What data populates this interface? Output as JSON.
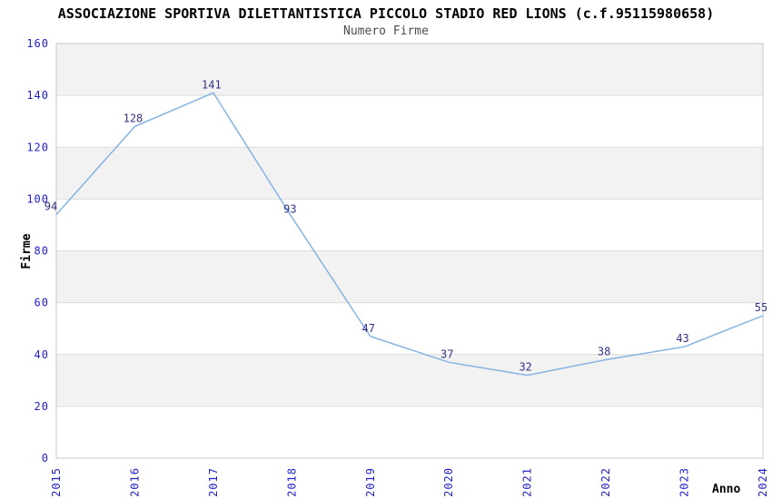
{
  "chart_data": {
    "type": "line",
    "title": "ASSOCIAZIONE SPORTIVA DILETTANTISTICA PICCOLO STADIO RED LIONS (c.f.95115980658)",
    "subtitle": "Numero Firme",
    "xlabel": "Anno",
    "ylabel": "Firme",
    "categories": [
      "2015",
      "2016",
      "2017",
      "2018",
      "2019",
      "2020",
      "2021",
      "2022",
      "2023",
      "2024"
    ],
    "values": [
      94,
      128,
      141,
      93,
      47,
      37,
      32,
      38,
      43,
      55
    ],
    "ylim": [
      0,
      160
    ],
    "ytick_step": 20,
    "yticks": [
      0,
      20,
      40,
      60,
      80,
      100,
      120,
      140,
      160
    ],
    "grid": "horizontal-bands",
    "legend": "none",
    "colors": {
      "line": "#85b3e3",
      "point_label": "#333388",
      "tick_label": "#1f1fcc",
      "band_gray": "#f2f2f2",
      "band_white": "#ffffff",
      "gridline": "#dcdcdc",
      "plot_border": "#c8c8c8",
      "title": "#000000",
      "subtitle": "#4d4d4d",
      "axis_label": "#000000"
    }
  }
}
